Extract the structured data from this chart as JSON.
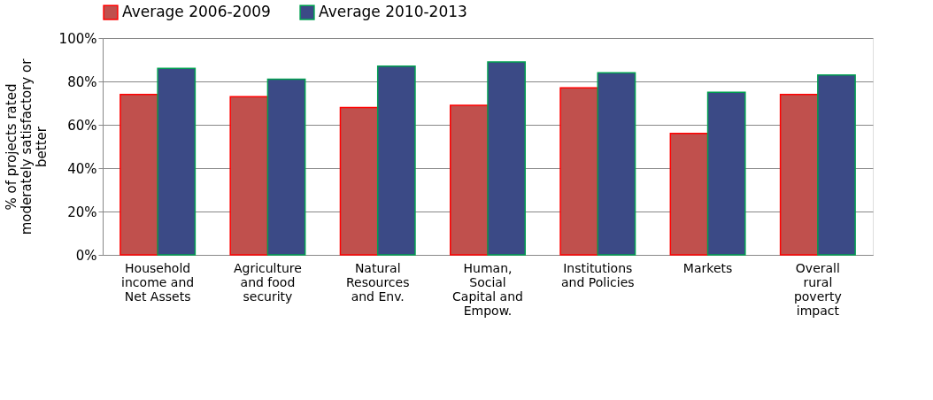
{
  "chart_data": {
    "type": "bar",
    "ylabel": "% of projects  rated moderately satisfactory or better",
    "categories": [
      "Household income and Net Assets",
      "Agriculture and food security",
      "Natural Resources and Env.",
      "Human, Social Capital and Empow.",
      "Institutions and Policies",
      "Markets",
      "Overall rural poverty impact"
    ],
    "series": [
      {
        "name": "Average 2006-2009",
        "color": "#c0504d",
        "values": [
          74,
          73,
          68,
          69,
          77,
          56,
          74
        ]
      },
      {
        "name": "Average 2010-2013",
        "color": "#3b4a86",
        "values": [
          86,
          81,
          87,
          89,
          84,
          75,
          83
        ]
      }
    ],
    "ylim": [
      0,
      100
    ],
    "yticks": [
      {
        "value": 0,
        "label": "0%"
      },
      {
        "value": 20,
        "label": "20%"
      },
      {
        "value": 40,
        "label": "40%"
      },
      {
        "value": 60,
        "label": "60%"
      },
      {
        "value": 80,
        "label": "80%"
      },
      {
        "value": 100,
        "label": "100%"
      }
    ],
    "grid": "y",
    "legend": "top"
  }
}
